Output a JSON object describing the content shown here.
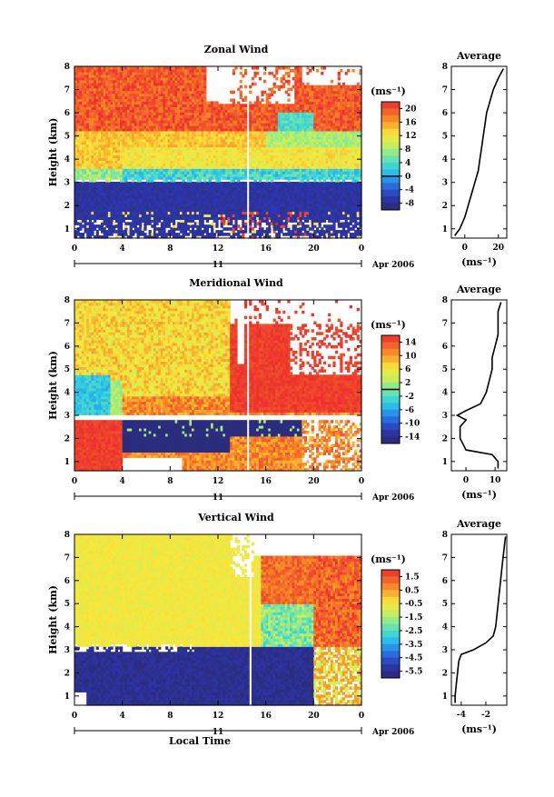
{
  "chart_data": [
    {
      "type": "heatmap",
      "title": "Zonal Wind",
      "ylabel": "Height (km)",
      "ylim": [
        0.6,
        8
      ],
      "xlim": [
        0,
        24
      ],
      "x_ticks": [
        "0",
        "4",
        "8",
        "12",
        "16",
        "20",
        "0"
      ],
      "y_ticks": [
        "1",
        "2",
        "3",
        "4",
        "5",
        "6",
        "7",
        "8"
      ],
      "day_label": "11",
      "month_label": "Apr 2006",
      "colorbar": {
        "unit": "(ms⁻¹)",
        "ticks": [
          "20",
          "16",
          "12",
          "8",
          "4",
          "0",
          "-4",
          "-8"
        ],
        "min": -10,
        "max": 22,
        "zero_line": 0
      },
      "profile": {
        "title": "Average",
        "x_ticks": [
          "0",
          "20"
        ],
        "xlim": [
          -8,
          25
        ],
        "xlabel": "(ms⁻¹)",
        "heights": [
          0.7,
          1.0,
          1.5,
          2.0,
          2.5,
          3.0,
          3.5,
          4.0,
          4.5,
          5.0,
          5.5,
          6.0,
          6.5,
          7.0,
          7.5,
          7.9
        ],
        "values": [
          -6,
          -3,
          0,
          2,
          4,
          6,
          8,
          9,
          10,
          11,
          12,
          13,
          15,
          17,
          20,
          23
        ]
      }
    },
    {
      "type": "heatmap",
      "title": "Meridional Wind",
      "ylabel": "Height (km)",
      "ylim": [
        0.6,
        8
      ],
      "xlim": [
        0,
        24
      ],
      "x_ticks": [
        "0",
        "4",
        "8",
        "12",
        "16",
        "20",
        "0"
      ],
      "y_ticks": [
        "1",
        "2",
        "3",
        "4",
        "5",
        "6",
        "7",
        "8"
      ],
      "day_label": "11",
      "month_label": "Apr 2006",
      "colorbar": {
        "unit": "(ms⁻¹)",
        "ticks": [
          "14",
          "10",
          "6",
          "2",
          "-2",
          "-6",
          "-10",
          "-14"
        ],
        "min": -16,
        "max": 16,
        "zero_line": 0
      },
      "profile": {
        "title": "Average",
        "x_ticks": [
          "0",
          "10"
        ],
        "xlim": [
          -5,
          14
        ],
        "xlabel": "(ms⁻¹)",
        "heights": [
          0.7,
          1.0,
          1.3,
          1.5,
          2.0,
          2.5,
          2.8,
          3.0,
          3.2,
          3.5,
          4.0,
          4.5,
          5.0,
          5.5,
          6.0,
          6.5,
          7.0,
          7.5,
          7.9
        ],
        "values": [
          11,
          11,
          9,
          0,
          -2,
          -2,
          0,
          -3,
          0,
          5,
          7,
          8,
          9,
          9,
          10,
          11,
          11,
          11,
          12
        ]
      }
    },
    {
      "type": "heatmap",
      "title": "Vertical Wind",
      "ylabel": "Height (km)",
      "xlabel": "Local Time",
      "ylim": [
        0.6,
        8
      ],
      "xlim": [
        0,
        24
      ],
      "x_ticks": [
        "0",
        "4",
        "8",
        "12",
        "16",
        "20",
        "0"
      ],
      "y_ticks": [
        "1",
        "2",
        "3",
        "4",
        "5",
        "6",
        "7",
        "8"
      ],
      "day_label": "11",
      "month_label": "Apr 2006",
      "colorbar": {
        "unit": "(ms⁻¹)",
        "ticks": [
          "1.5",
          "0.5",
          "-0.5",
          "-1.5",
          "-2.5",
          "-3.5",
          "-4.5",
          "-5.5"
        ],
        "min": -6,
        "max": 2
      },
      "profile": {
        "title": "Average",
        "x_ticks": [
          "-4",
          "-2"
        ],
        "xlim": [
          -4.8,
          -0.3
        ],
        "xlabel": "(ms⁻¹)",
        "heights": [
          0.7,
          1.0,
          1.5,
          2.0,
          2.5,
          2.8,
          3.0,
          3.3,
          3.6,
          4.0,
          5.0,
          6.0,
          7.0,
          7.9
        ],
        "values": [
          -4.5,
          -4.5,
          -4.4,
          -4.3,
          -4.2,
          -4.0,
          -3.0,
          -2.0,
          -1.4,
          -1.2,
          -1.0,
          -0.8,
          -0.6,
          -0.4
        ]
      }
    }
  ]
}
